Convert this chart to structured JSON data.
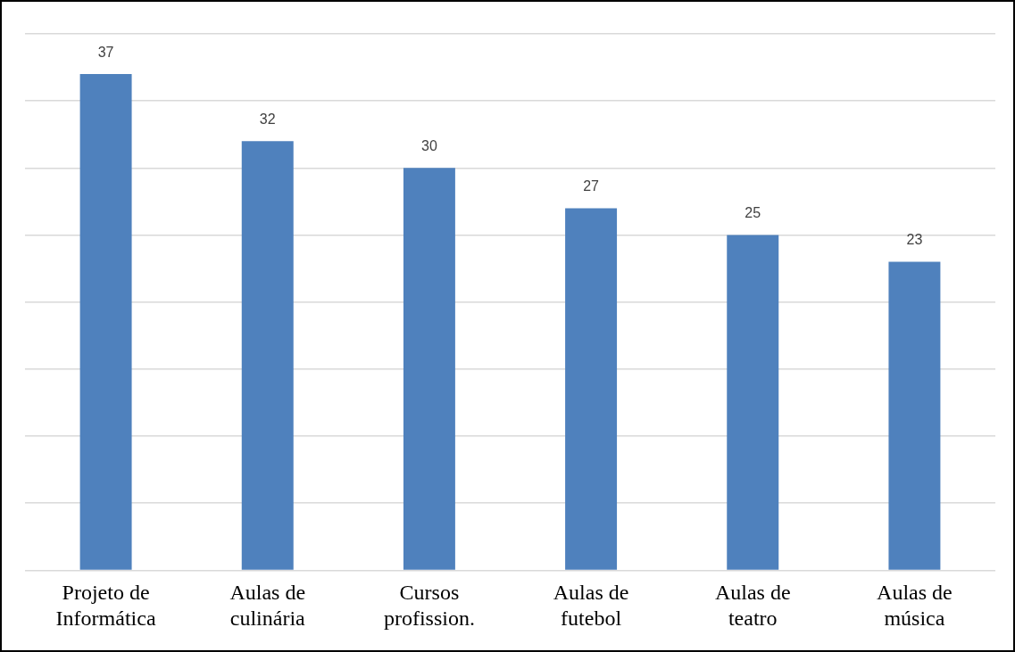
{
  "chart_data": {
    "type": "bar",
    "categories": [
      "Projeto de\nInformática",
      "Aulas de\nculinária",
      "Cursos\nprofission.",
      "Aulas de\nfutebol",
      "Aulas de\nteatro",
      "Aulas de\nmúsica"
    ],
    "values": [
      37,
      32,
      30,
      27,
      25,
      23
    ],
    "color": "#4f81bd",
    "ylim": [
      0,
      40
    ],
    "yticks": [
      {
        "value": 0,
        "label": null
      },
      {
        "value": 5,
        "label": null
      },
      {
        "value": 10,
        "label": null
      },
      {
        "value": 15,
        "label": null
      },
      {
        "value": 20,
        "label": null
      },
      {
        "value": 25,
        "label": null
      },
      {
        "value": 30,
        "label": null
      },
      {
        "value": 35,
        "label": null
      },
      {
        "value": 40,
        "label": null
      }
    ],
    "grid": "y",
    "tick_labels": "x",
    "data_labels": true
  }
}
